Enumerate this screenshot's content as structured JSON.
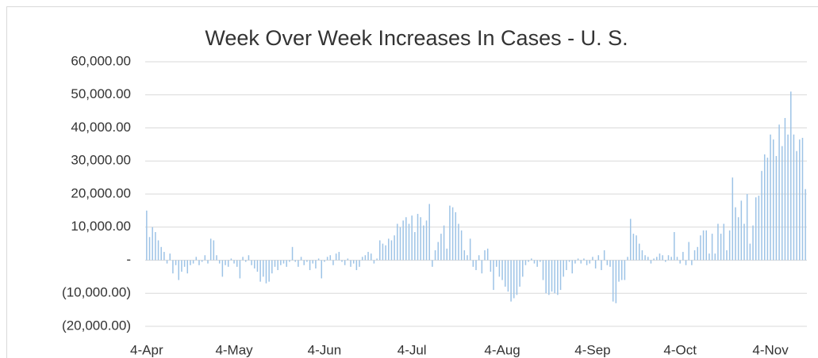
{
  "chart_data": {
    "type": "bar",
    "title": "Week Over Week Increases In Cases - U. S.",
    "color": "#9dc3e6",
    "grid": true,
    "ylim": [
      -20000,
      60000
    ],
    "yticks": [
      {
        "value": -20000,
        "label": "(20,000.00)"
      },
      {
        "value": -10000,
        "label": "(10,000.00)"
      },
      {
        "value": 0,
        "label": "-"
      },
      {
        "value": 10000,
        "label": "10,000.00"
      },
      {
        "value": 20000,
        "label": "20,000.00"
      },
      {
        "value": 30000,
        "label": "30,000.00"
      },
      {
        "value": 40000,
        "label": "40,000.00"
      },
      {
        "value": 50000,
        "label": "50,000.00"
      },
      {
        "value": 60000,
        "label": "60,000.00"
      }
    ],
    "categories": [
      "4-Apr",
      null,
      null,
      null,
      null,
      null,
      null,
      null,
      null,
      null,
      null,
      null,
      null,
      null,
      null,
      null,
      null,
      null,
      null,
      null,
      null,
      null,
      null,
      null,
      null,
      null,
      null,
      null,
      null,
      null,
      "4-May",
      null,
      null,
      null,
      null,
      null,
      null,
      null,
      null,
      null,
      null,
      null,
      null,
      null,
      null,
      null,
      null,
      null,
      null,
      null,
      null,
      null,
      null,
      null,
      null,
      null,
      null,
      null,
      null,
      null,
      null,
      "4-Jun",
      null,
      null,
      null,
      null,
      null,
      null,
      null,
      null,
      null,
      null,
      null,
      null,
      null,
      null,
      null,
      null,
      null,
      null,
      null,
      null,
      null,
      null,
      null,
      null,
      null,
      null,
      null,
      null,
      null,
      "4-Jul",
      null,
      null,
      null,
      null,
      null,
      null,
      null,
      null,
      null,
      null,
      null,
      null,
      null,
      null,
      null,
      null,
      null,
      null,
      null,
      null,
      null,
      null,
      null,
      null,
      null,
      null,
      null,
      null,
      null,
      null,
      "4-Aug",
      null,
      null,
      null,
      null,
      null,
      null,
      null,
      null,
      null,
      null,
      null,
      null,
      null,
      null,
      null,
      null,
      null,
      null,
      null,
      null,
      null,
      null,
      null,
      null,
      null,
      null,
      null,
      null,
      null,
      null,
      "4-Sep",
      null,
      null,
      null,
      null,
      null,
      null,
      null,
      null,
      null,
      null,
      null,
      null,
      null,
      null,
      null,
      null,
      null,
      null,
      null,
      null,
      null,
      null,
      null,
      null,
      null,
      null,
      null,
      null,
      null,
      "4-Oct",
      null,
      null,
      null,
      null,
      null,
      null,
      null,
      null,
      null,
      null,
      null,
      null,
      null,
      null,
      null,
      null,
      null,
      null,
      null,
      null,
      null,
      null,
      null,
      null,
      null,
      null,
      null,
      null,
      null,
      null,
      "4-Nov",
      null,
      null,
      null,
      null,
      null,
      null,
      null,
      null,
      null,
      null,
      null,
      null
    ],
    "values": [
      15000,
      7000,
      10000,
      8500,
      6000,
      4000,
      2500,
      -1000,
      2000,
      -4000,
      -1500,
      -6000,
      -3500,
      -2000,
      -4000,
      -1500,
      -1000,
      1000,
      -1500,
      -500,
      1500,
      -1000,
      6500,
      6000,
      1500,
      -1000,
      -5000,
      -1500,
      -2000,
      500,
      -1000,
      -2000,
      -5500,
      1000,
      -500,
      1500,
      -1500,
      -2500,
      -3500,
      -6500,
      -5000,
      -7000,
      -6500,
      -4000,
      -2000,
      -3000,
      -1500,
      -1000,
      -2000,
      -500,
      4000,
      -500,
      -2000,
      1000,
      -1500,
      -500,
      -3000,
      -1000,
      -2500,
      500,
      -5500,
      -500,
      1000,
      1500,
      -1500,
      2000,
      2500,
      -500,
      -1500,
      500,
      -2000,
      -1000,
      -3000,
      -2000,
      1000,
      1500,
      2500,
      2000,
      -1000,
      500,
      6000,
      5000,
      4500,
      6500,
      6000,
      7500,
      11000,
      10000,
      12000,
      13000,
      11000,
      13500,
      8500,
      14000,
      13000,
      10500,
      12000,
      17000,
      -2000,
      3000,
      5500,
      8000,
      10500,
      3500,
      16500,
      16000,
      14500,
      11000,
      9000,
      3000,
      1500,
      6500,
      -2000,
      -3000,
      1500,
      -4000,
      3000,
      3500,
      -3500,
      -9000,
      -2000,
      -5000,
      -6000,
      -8000,
      -9500,
      -12500,
      -11500,
      -10500,
      -8000,
      -5000,
      -1500,
      -500,
      500,
      -1000,
      -2000,
      -500,
      -6000,
      -10000,
      -10500,
      -9500,
      -10000,
      -10500,
      -9000,
      -5000,
      -3000,
      -500,
      -4000,
      -1000,
      500,
      -1000,
      500,
      -1500,
      -1000,
      1000,
      -2500,
      1500,
      -3000,
      3000,
      -1500,
      -2000,
      -12500,
      -13000,
      -6500,
      -6000,
      -6000,
      1000,
      12500,
      8000,
      7500,
      5000,
      3000,
      1500,
      1000,
      -1000,
      500,
      1000,
      2000,
      1500,
      -500,
      1500,
      1000,
      8500,
      1000,
      -1000,
      2500,
      -1500,
      5500,
      -1500,
      3000,
      4000,
      7500,
      9000,
      9000,
      2000,
      8000,
      2000,
      11000,
      8000,
      11000,
      3000,
      9000,
      25000,
      16000,
      13000,
      18000,
      11000,
      20000,
      5000,
      10500,
      19000,
      19500,
      27000,
      32000,
      31000,
      38000,
      36500,
      31500,
      41000,
      34500,
      43000,
      38000,
      51000,
      38000,
      33000,
      36500,
      37000,
      21500
    ]
  }
}
